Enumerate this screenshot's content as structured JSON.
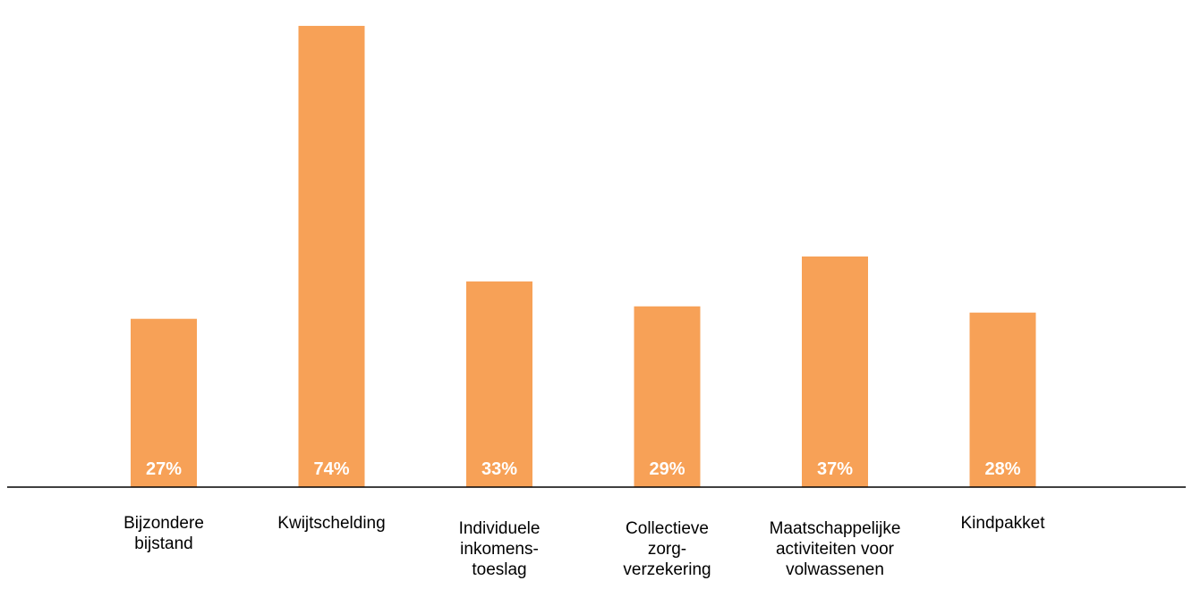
{
  "chart_data": {
    "type": "bar",
    "categories": [
      [
        "Bijzondere",
        "bijstand"
      ],
      [
        "Kwijtschelding"
      ],
      [
        "Individuele",
        "inkomens-",
        "toeslag"
      ],
      [
        "Collectieve",
        "zorg-",
        "verzekering"
      ],
      [
        "Maatschappelijke",
        "activiteiten voor",
        "volwassenen"
      ],
      [
        "Kindpakket"
      ]
    ],
    "values": [
      27,
      74,
      33,
      29,
      37,
      28
    ],
    "data_labels": [
      "27%",
      "74%",
      "33%",
      "29%",
      "37%",
      "28%"
    ],
    "ylim": [
      0,
      76
    ],
    "grid": false,
    "legend": "none",
    "colors": {
      "bar": "#F7A157",
      "axis": "#000000",
      "value_text": "#FFFFFF",
      "label_text": "#000000"
    }
  }
}
